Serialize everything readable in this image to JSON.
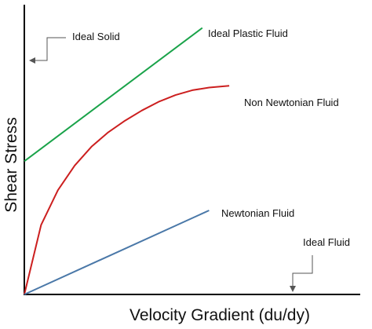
{
  "chart_data": {
    "type": "line",
    "title": "",
    "xlabel": "Velocity Gradient (du/dy)",
    "ylabel": "Shear Stress",
    "xlim": [
      0,
      10
    ],
    "ylim": [
      0,
      10
    ],
    "grid": false,
    "legend": "none",
    "series": [
      {
        "name": "Ideal Plastic Fluid",
        "color": "#1aa34a",
        "x": [
          0,
          5.3
        ],
        "y": [
          4.6,
          9.2
        ]
      },
      {
        "name": "Non Newtonian Fluid",
        "color": "#cc1f1f",
        "x": [
          0,
          0.5,
          1,
          1.5,
          2,
          2.5,
          3,
          3.5,
          4,
          4.5,
          5,
          5.5,
          6.1
        ],
        "y": [
          0,
          2.4,
          3.6,
          4.45,
          5.1,
          5.6,
          6.0,
          6.35,
          6.65,
          6.88,
          7.05,
          7.14,
          7.2
        ]
      },
      {
        "name": "Newtonian Fluid",
        "color": "#4a78a8",
        "x": [
          0,
          5.5
        ],
        "y": [
          0,
          2.9
        ]
      }
    ],
    "annotations": [
      {
        "name": "Ideal Solid",
        "target_axis": "y"
      },
      {
        "name": "Ideal Fluid",
        "target_axis": "x"
      }
    ]
  }
}
